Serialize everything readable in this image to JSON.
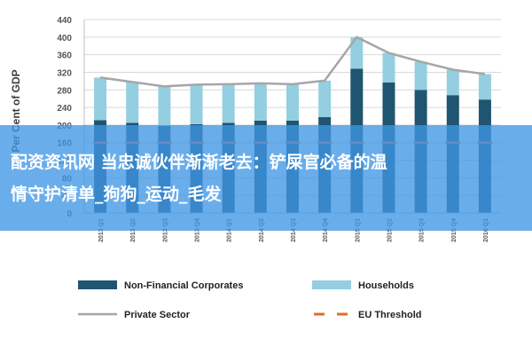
{
  "chart_data": {
    "type": "bar",
    "ylabel": "Per Cent of GDP",
    "ylim": [
      0,
      440
    ],
    "yticks": [
      0,
      40,
      80,
      120,
      160,
      200,
      240,
      280,
      320,
      360,
      400,
      440
    ],
    "categories": [
      "2013 Q1",
      "2013 Q2",
      "2013 Q3",
      "2013 Q4",
      "2014 Q1",
      "2014 Q2",
      "2014 Q3",
      "2014 Q4",
      "2015 Q1",
      "2015 Q2",
      "2015 Q3",
      "2015 Q4",
      "2016 Q1"
    ],
    "series": [
      {
        "name": "Non-Financial Corporates",
        "kind": "bar",
        "color": "#1f5570",
        "values": [
          211,
          205,
          198,
          202,
          205,
          210,
          210,
          218,
          328,
          297,
          280,
          268,
          258
        ]
      },
      {
        "name": "Households",
        "kind": "bar",
        "color": "#93cfe0",
        "values": [
          97,
          93,
          90,
          90,
          88,
          85,
          83,
          83,
          72,
          67,
          64,
          58,
          58
        ]
      },
      {
        "name": "Private Sector",
        "kind": "line",
        "color": "#a6a6a6",
        "values": [
          308,
          298,
          288,
          292,
          293,
          295,
          293,
          301,
          400,
          364,
          344,
          326,
          316
        ]
      },
      {
        "name": "EU Threshold",
        "kind": "dash",
        "color": "#e26b2c",
        "values": [
          160,
          160,
          160,
          160,
          160,
          160,
          160,
          160,
          160,
          160,
          160,
          160,
          160
        ]
      }
    ],
    "stacked": true,
    "grid": "horizontal",
    "legend_position": "bottom"
  },
  "overlay": {
    "line1": "配资资讯网 当忠诚伙伴渐渐老去：铲屎官必备的温",
    "line2": "情守护清单_狗狗_运动_毛发"
  }
}
